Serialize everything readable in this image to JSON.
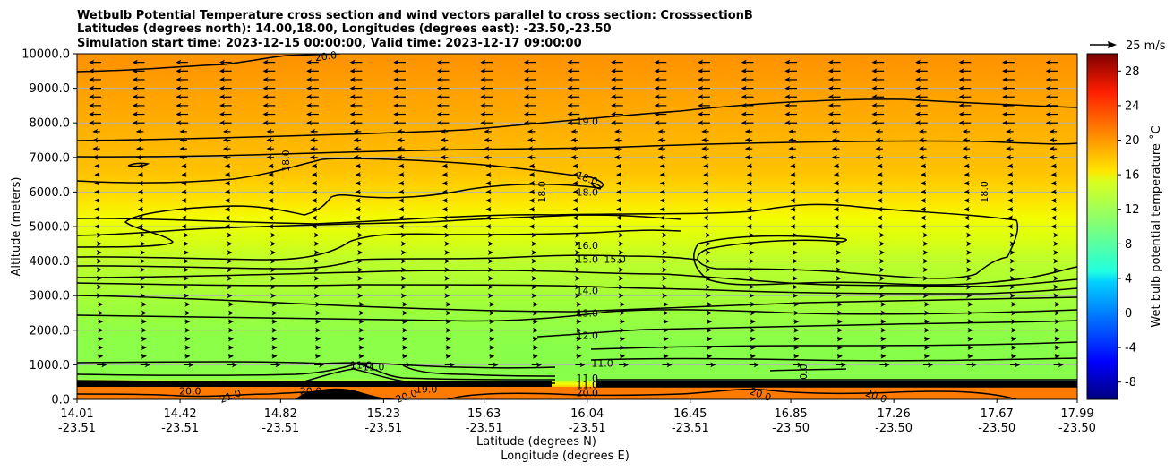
{
  "chart_data": {
    "type": "contour",
    "title_lines": [
      "Wetbulb Potential Temperature cross section and wind vectors parallel to cross section: CrosssectionB",
      "Latitudes (degrees north): 14.00,18.00, Longitudes (degrees east): -23.50,-23.50",
      "Simulation start time: 2023-12-15 00:00:00, Valid time: 2023-12-17 09:00:00"
    ],
    "ylabel": "Altitude (meters)",
    "xlabel_lat": "Latitude (degrees N)",
    "xlabel_lon": "Longitude (degrees E)",
    "ylim": [
      0,
      10000
    ],
    "y_ticks": [
      "0.0",
      "1000.0",
      "2000.0",
      "3000.0",
      "4000.0",
      "5000.0",
      "6000.0",
      "7000.0",
      "8000.0",
      "9000.0",
      "10000.0"
    ],
    "x_ticks": [
      {
        "lat": "14.01",
        "lon": "-23.51"
      },
      {
        "lat": "14.42",
        "lon": "-23.51"
      },
      {
        "lat": "14.82",
        "lon": "-23.51"
      },
      {
        "lat": "15.23",
        "lon": "-23.51"
      },
      {
        "lat": "15.63",
        "lon": "-23.51"
      },
      {
        "lat": "16.04",
        "lon": "-23.51"
      },
      {
        "lat": "16.45",
        "lon": "-23.51"
      },
      {
        "lat": "16.85",
        "lon": "-23.50"
      },
      {
        "lat": "17.26",
        "lon": "-23.50"
      },
      {
        "lat": "17.67",
        "lon": "-23.50"
      },
      {
        "lat": "17.99",
        "lon": "-23.50"
      }
    ],
    "colorbar": {
      "label": "Wet bulb potential temperature ˚C",
      "range": [
        -10,
        30
      ],
      "ticks": [
        "-8",
        "-4",
        "0",
        "4",
        "8",
        "12",
        "16",
        "20",
        "24",
        "28"
      ],
      "colormap": "jet"
    },
    "quiver_key": "25 m/s",
    "contour_levels": [
      {
        "label": "11.0",
        "altitude": 1050
      },
      {
        "label": "12.0",
        "altitude": 1850
      },
      {
        "label": "13.0",
        "altitude": 2500
      },
      {
        "label": "14.0",
        "altitude": 3150
      },
      {
        "label": "15.0",
        "altitude": 3900
      },
      {
        "label": "16.0",
        "altitude": 4450
      },
      {
        "label": "18.0",
        "altitude": 5200
      },
      {
        "label": "19.0",
        "altitude": 8050
      },
      {
        "label": "20.0",
        "altitude": 9950
      }
    ],
    "contour_labels": [
      {
        "text": "20.0",
        "x": 15.0,
        "alt": 9930,
        "rot": -8
      },
      {
        "text": "19.0",
        "x": 16.04,
        "alt": 8050,
        "rot": 0
      },
      {
        "text": "18.0",
        "x": 14.84,
        "alt": 6900,
        "rot": -90
      },
      {
        "text": "18.0",
        "x": 15.86,
        "alt": 6000,
        "rot": -90
      },
      {
        "text": "18.0",
        "x": 16.04,
        "alt": 6400,
        "rot": 20
      },
      {
        "text": "18.0",
        "x": 16.04,
        "alt": 6000,
        "rot": 0
      },
      {
        "text": "18.0",
        "x": 17.62,
        "alt": 6000,
        "rot": -90
      },
      {
        "text": "16.0",
        "x": 16.04,
        "alt": 4450,
        "rot": 0
      },
      {
        "text": "15.0",
        "x": 16.04,
        "alt": 4050,
        "rot": 0
      },
      {
        "text": "15.0",
        "x": 16.15,
        "alt": 4050,
        "rot": 0
      },
      {
        "text": "14.0",
        "x": 16.04,
        "alt": 3150,
        "rot": 0
      },
      {
        "text": "13.0",
        "x": 16.04,
        "alt": 2500,
        "rot": 0
      },
      {
        "text": "12.0",
        "x": 16.04,
        "alt": 1850,
        "rot": 0
      },
      {
        "text": "11.0",
        "x": 16.1,
        "alt": 1050,
        "rot": 0
      },
      {
        "text": "11.0",
        "x": 15.14,
        "alt": 1000,
        "rot": 0
      },
      {
        "text": "11.0",
        "x": 15.19,
        "alt": 950,
        "rot": 0
      },
      {
        "text": "11.0",
        "x": 16.04,
        "alt": 620,
        "rot": 0
      },
      {
        "text": "11.0",
        "x": 16.04,
        "alt": 430,
        "rot": 0
      },
      {
        "text": "20.0",
        "x": 16.04,
        "alt": 200,
        "rot": 0
      },
      {
        "text": "20.0",
        "x": 14.46,
        "alt": 250,
        "rot": 0
      },
      {
        "text": "21.0",
        "x": 14.62,
        "alt": 100,
        "rot": -20
      },
      {
        "text": "20.0",
        "x": 14.94,
        "alt": 250,
        "rot": 0
      },
      {
        "text": "20.0",
        "x": 15.32,
        "alt": 100,
        "rot": -20
      },
      {
        "text": "19.0",
        "x": 15.4,
        "alt": 300,
        "rot": 0
      },
      {
        "text": "20.0",
        "x": 16.73,
        "alt": 150,
        "rot": 20
      },
      {
        "text": "0.0",
        "x": 16.9,
        "alt": 800,
        "rot": -90
      },
      {
        "text": "20.0",
        "x": 17.19,
        "alt": 100,
        "rot": 20
      }
    ]
  }
}
